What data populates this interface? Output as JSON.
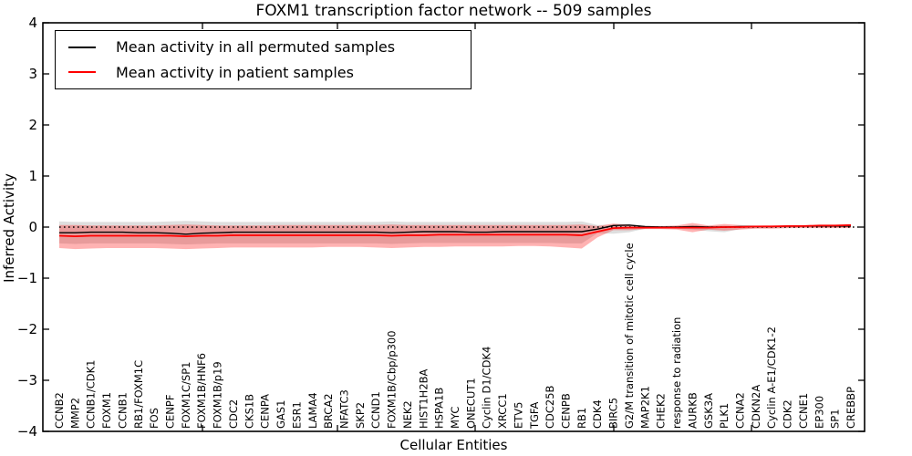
{
  "title": "FOXM1 transcription factor network -- 509 samples",
  "chart_data": {
    "type": "line",
    "title": "FOXM1 transcription factor network -- 509 samples",
    "xlabel": "Cellular Entities",
    "ylabel": "Inferred Activity",
    "ylim": [
      -4,
      4
    ],
    "yticks": [
      -4,
      -3,
      -2,
      -1,
      0,
      1,
      2,
      3,
      4
    ],
    "grid": false,
    "zero_line": {
      "y": 0,
      "style": "dotted",
      "color": "#000000"
    },
    "legend": {
      "position": "upper left",
      "entries": [
        {
          "label": "Mean activity in all permuted samples",
          "color": "#000000"
        },
        {
          "label": "Mean activity in patient samples",
          "color": "#ff0000"
        }
      ]
    },
    "categories": [
      "CCNB2",
      "MMP2",
      "CCNB1/CDK1",
      "FOXM1",
      "CCNB1",
      "RB1/FOXM1C",
      "FOS",
      "CENPF",
      "FOXM1C/SP1",
      "FOXM1B/HNF6",
      "FOXM1B/p19",
      "CDC2",
      "CKS1B",
      "CENPA",
      "GAS1",
      "ESR1",
      "LAMA4",
      "BRCA2",
      "NFATC3",
      "SKP2",
      "CCND1",
      "FOXM1B/Cbp/p300",
      "NEK2",
      "HIST1H2BA",
      "HSPA1B",
      "MYC",
      "ONECUT1",
      "Cyclin D1/CDK4",
      "XRCC1",
      "ETV5",
      "TGFA",
      "CDC25B",
      "CENPB",
      "RB1",
      "CDK4",
      "BIRC5",
      "G2/M transition of mitotic cell cycle",
      "MAP2K1",
      "CHEK2",
      "response to radiation",
      "AURKB",
      "GSK3A",
      "PLK1",
      "CCNA2",
      "CDKN2A",
      "Cyclin A-E1/CDK1-2",
      "CDK2",
      "CCNE1",
      "EP300",
      "SP1",
      "CREBBP"
    ],
    "series": [
      {
        "name": "Mean activity in all permuted samples",
        "color": "#000000",
        "values": [
          -0.11,
          -0.11,
          -0.1,
          -0.1,
          -0.1,
          -0.11,
          -0.11,
          -0.12,
          -0.14,
          -0.12,
          -0.11,
          -0.1,
          -0.1,
          -0.1,
          -0.1,
          -0.1,
          -0.1,
          -0.1,
          -0.1,
          -0.1,
          -0.1,
          -0.11,
          -0.1,
          -0.09,
          -0.09,
          -0.09,
          -0.1,
          -0.1,
          -0.09,
          -0.09,
          -0.09,
          -0.09,
          -0.09,
          -0.09,
          -0.04,
          0.03,
          0.04,
          0.01,
          0.0,
          0.0,
          0.01,
          0.0,
          0.0,
          0.01,
          0.01,
          0.01,
          0.02,
          0.02,
          0.02,
          0.02,
          0.02
        ]
      },
      {
        "name": "Mean activity in patient samples",
        "color": "#ff0000",
        "values": [
          -0.17,
          -0.18,
          -0.17,
          -0.17,
          -0.17,
          -0.17,
          -0.17,
          -0.17,
          -0.18,
          -0.17,
          -0.17,
          -0.16,
          -0.16,
          -0.16,
          -0.16,
          -0.16,
          -0.16,
          -0.16,
          -0.16,
          -0.16,
          -0.16,
          -0.17,
          -0.16,
          -0.16,
          -0.15,
          -0.15,
          -0.15,
          -0.15,
          -0.15,
          -0.15,
          -0.15,
          -0.15,
          -0.15,
          -0.16,
          -0.09,
          -0.02,
          -0.01,
          -0.01,
          -0.01,
          -0.01,
          -0.01,
          -0.01,
          0.0,
          0.0,
          0.01,
          0.01,
          0.02,
          0.02,
          0.03,
          0.03,
          0.04
        ]
      }
    ],
    "bands": [
      {
        "name": "permuted-samples-range",
        "color": "#888888",
        "opacity": 0.28,
        "upper": [
          0.11,
          0.1,
          0.1,
          0.1,
          0.1,
          0.1,
          0.1,
          0.11,
          0.12,
          0.11,
          0.1,
          0.1,
          0.1,
          0.1,
          0.1,
          0.1,
          0.1,
          0.1,
          0.1,
          0.1,
          0.1,
          0.11,
          0.1,
          0.1,
          0.1,
          0.1,
          0.1,
          0.1,
          0.1,
          0.1,
          0.1,
          0.1,
          0.1,
          0.11,
          0.04,
          0.05,
          0.04,
          0.02,
          0.01,
          0.02,
          0.02,
          0.02,
          0.03,
          0.02,
          0.01,
          0.02,
          0.01,
          0.01,
          0.02,
          0.02,
          0.02
        ],
        "lower": [
          -0.32,
          -0.33,
          -0.32,
          -0.32,
          -0.32,
          -0.32,
          -0.32,
          -0.33,
          -0.34,
          -0.33,
          -0.32,
          -0.32,
          -0.32,
          -0.32,
          -0.32,
          -0.32,
          -0.32,
          -0.32,
          -0.32,
          -0.32,
          -0.32,
          -0.33,
          -0.32,
          -0.31,
          -0.31,
          -0.31,
          -0.31,
          -0.31,
          -0.31,
          -0.31,
          -0.31,
          -0.31,
          -0.32,
          -0.32,
          -0.12,
          -0.13,
          -0.1,
          -0.03,
          -0.02,
          -0.03,
          -0.05,
          -0.08,
          -0.1,
          -0.04,
          -0.02,
          -0.02,
          -0.02,
          -0.01,
          -0.01,
          -0.01,
          -0.01
        ]
      },
      {
        "name": "patient-samples-range",
        "color": "#ff0000",
        "opacity": 0.3,
        "upper": [
          0.04,
          0.04,
          0.03,
          0.03,
          0.03,
          0.03,
          0.03,
          0.04,
          0.05,
          0.04,
          0.03,
          0.03,
          0.03,
          0.03,
          0.04,
          0.04,
          0.04,
          0.04,
          0.04,
          0.04,
          0.04,
          0.05,
          0.04,
          0.04,
          0.04,
          0.04,
          0.04,
          0.04,
          0.04,
          0.04,
          0.04,
          0.04,
          0.04,
          0.05,
          0.02,
          0.07,
          0.05,
          0.02,
          0.02,
          0.03,
          0.08,
          0.03,
          0.06,
          0.04,
          0.03,
          0.04,
          0.03,
          0.03,
          0.03,
          0.04,
          0.05
        ],
        "lower": [
          -0.41,
          -0.43,
          -0.42,
          -0.41,
          -0.41,
          -0.41,
          -0.41,
          -0.42,
          -0.43,
          -0.42,
          -0.41,
          -0.4,
          -0.4,
          -0.4,
          -0.4,
          -0.4,
          -0.4,
          -0.39,
          -0.39,
          -0.39,
          -0.4,
          -0.41,
          -0.4,
          -0.39,
          -0.39,
          -0.38,
          -0.38,
          -0.38,
          -0.38,
          -0.37,
          -0.37,
          -0.38,
          -0.4,
          -0.42,
          -0.2,
          -0.06,
          -0.06,
          -0.04,
          -0.04,
          -0.05,
          -0.1,
          -0.05,
          -0.07,
          -0.05,
          -0.03,
          -0.03,
          -0.02,
          -0.02,
          -0.02,
          -0.02,
          -0.02
        ]
      }
    ]
  }
}
